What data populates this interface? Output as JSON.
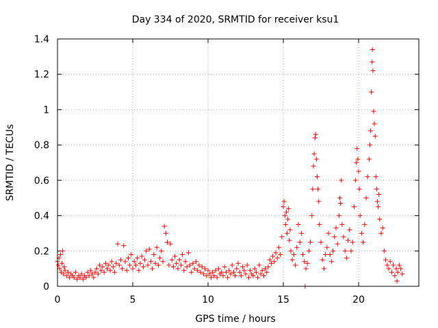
{
  "chart_data": {
    "type": "scatter",
    "title": "Day 334 of 2020, SRMTID for receiver ksu1",
    "xlabel": "GPS time / hours",
    "ylabel": "SRMTID / TECUs",
    "xlim": [
      0,
      24
    ],
    "ylim": [
      0,
      1.4
    ],
    "grid": true,
    "marker": "+",
    "color": "#ff0000",
    "x_ticks": [
      0,
      5,
      10,
      15,
      20
    ],
    "x_tick_labels": [
      "0",
      "5",
      "10",
      "15",
      "20"
    ],
    "y_ticks": [
      0,
      0.2,
      0.4,
      0.6,
      0.8,
      1.0,
      1.2,
      1.4
    ],
    "y_tick_labels": [
      "0",
      "0.2",
      "0.4",
      "0.6",
      "0.8",
      "1",
      "1.2",
      "1.4"
    ],
    "series": [
      {
        "name": "SRMTID",
        "points": [
          [
            0.0,
            0.14
          ],
          [
            0.05,
            0.12
          ],
          [
            0.1,
            0.16
          ],
          [
            0.15,
            0.1
          ],
          [
            0.2,
            0.18
          ],
          [
            0.25,
            0.08
          ],
          [
            0.3,
            0.13
          ],
          [
            0.35,
            0.2
          ],
          [
            0.4,
            0.07
          ],
          [
            0.45,
            0.11
          ],
          [
            0.5,
            0.09
          ],
          [
            0.6,
            0.06
          ],
          [
            0.7,
            0.08
          ],
          [
            0.8,
            0.05
          ],
          [
            0.9,
            0.07
          ],
          [
            1.0,
            0.06
          ],
          [
            1.1,
            0.05
          ],
          [
            1.2,
            0.08
          ],
          [
            1.3,
            0.04
          ],
          [
            1.4,
            0.06
          ],
          [
            1.5,
            0.05
          ],
          [
            1.6,
            0.07
          ],
          [
            1.7,
            0.04
          ],
          [
            1.8,
            0.06
          ],
          [
            1.9,
            0.05
          ],
          [
            2.0,
            0.08
          ],
          [
            2.1,
            0.06
          ],
          [
            2.2,
            0.09
          ],
          [
            2.3,
            0.07
          ],
          [
            2.4,
            0.05
          ],
          [
            2.5,
            0.08
          ],
          [
            2.6,
            0.1
          ],
          [
            2.7,
            0.07
          ],
          [
            2.8,
            0.12
          ],
          [
            2.9,
            0.09
          ],
          [
            3.0,
            0.11
          ],
          [
            3.1,
            0.08
          ],
          [
            3.2,
            0.13
          ],
          [
            3.3,
            0.1
          ],
          [
            3.4,
            0.12
          ],
          [
            3.5,
            0.09
          ],
          [
            3.6,
            0.14
          ],
          [
            3.7,
            0.11
          ],
          [
            3.8,
            0.08
          ],
          [
            3.9,
            0.13
          ],
          [
            4.0,
            0.24
          ],
          [
            4.1,
            0.12
          ],
          [
            4.2,
            0.15
          ],
          [
            4.3,
            0.1
          ],
          [
            4.4,
            0.23
          ],
          [
            4.5,
            0.14
          ],
          [
            4.6,
            0.09
          ],
          [
            4.7,
            0.16
          ],
          [
            4.8,
            0.12
          ],
          [
            4.9,
            0.18
          ],
          [
            5.0,
            0.1
          ],
          [
            5.1,
            0.14
          ],
          [
            5.2,
            0.12
          ],
          [
            5.3,
            0.16
          ],
          [
            5.4,
            0.09
          ],
          [
            5.5,
            0.13
          ],
          [
            5.6,
            0.17
          ],
          [
            5.7,
            0.11
          ],
          [
            5.8,
            0.15
          ],
          [
            5.9,
            0.2
          ],
          [
            6.0,
            0.12
          ],
          [
            6.1,
            0.21
          ],
          [
            6.2,
            0.14
          ],
          [
            6.3,
            0.1
          ],
          [
            6.4,
            0.18
          ],
          [
            6.5,
            0.13
          ],
          [
            6.6,
            0.22
          ],
          [
            6.7,
            0.12
          ],
          [
            6.8,
            0.16
          ],
          [
            6.9,
            0.2
          ],
          [
            7.0,
            0.14
          ],
          [
            7.1,
            0.34
          ],
          [
            7.2,
            0.3
          ],
          [
            7.3,
            0.25
          ],
          [
            7.4,
            0.12
          ],
          [
            7.5,
            0.24
          ],
          [
            7.6,
            0.15
          ],
          [
            7.7,
            0.11
          ],
          [
            7.8,
            0.17
          ],
          [
            7.9,
            0.13
          ],
          [
            8.0,
            0.1
          ],
          [
            8.1,
            0.15
          ],
          [
            8.2,
            0.12
          ],
          [
            8.3,
            0.18
          ],
          [
            8.4,
            0.09
          ],
          [
            8.5,
            0.14
          ],
          [
            8.6,
            0.11
          ],
          [
            8.7,
            0.19
          ],
          [
            8.8,
            0.12
          ],
          [
            8.9,
            0.08
          ],
          [
            9.0,
            0.13
          ],
          [
            9.1,
            0.1
          ],
          [
            9.2,
            0.14
          ],
          [
            9.3,
            0.09
          ],
          [
            9.4,
            0.12
          ],
          [
            9.5,
            0.08
          ],
          [
            9.6,
            0.11
          ],
          [
            9.7,
            0.07
          ],
          [
            9.8,
            0.1
          ],
          [
            9.9,
            0.06
          ],
          [
            10.0,
            0.09
          ],
          [
            10.1,
            0.07
          ],
          [
            10.2,
            0.05
          ],
          [
            10.3,
            0.08
          ],
          [
            10.4,
            0.06
          ],
          [
            10.5,
            0.09
          ],
          [
            10.6,
            0.05
          ],
          [
            10.7,
            0.1
          ],
          [
            10.8,
            0.07
          ],
          [
            10.9,
            0.08
          ],
          [
            11.0,
            0.06
          ],
          [
            11.1,
            0.11
          ],
          [
            11.2,
            0.08
          ],
          [
            11.3,
            0.05
          ],
          [
            11.4,
            0.09
          ],
          [
            11.5,
            0.07
          ],
          [
            11.6,
            0.12
          ],
          [
            11.7,
            0.08
          ],
          [
            11.8,
            0.06
          ],
          [
            11.9,
            0.1
          ],
          [
            12.0,
            0.13
          ],
          [
            12.1,
            0.08
          ],
          [
            12.2,
            0.06
          ],
          [
            12.3,
            0.11
          ],
          [
            12.4,
            0.09
          ],
          [
            12.5,
            0.07
          ],
          [
            12.6,
            0.12
          ],
          [
            12.7,
            0.05
          ],
          [
            12.8,
            0.09
          ],
          [
            12.9,
            0.07
          ],
          [
            13.0,
            0.06
          ],
          [
            13.1,
            0.1
          ],
          [
            13.2,
            0.08
          ],
          [
            13.3,
            0.05
          ],
          [
            13.4,
            0.12
          ],
          [
            13.5,
            0.07
          ],
          [
            13.6,
            0.09
          ],
          [
            13.7,
            0.06
          ],
          [
            13.8,
            0.1
          ],
          [
            13.9,
            0.08
          ],
          [
            14.0,
            0.11
          ],
          [
            14.1,
            0.15
          ],
          [
            14.2,
            0.13
          ],
          [
            14.3,
            0.17
          ],
          [
            14.4,
            0.14
          ],
          [
            14.5,
            0.19
          ],
          [
            14.6,
            0.16
          ],
          [
            14.7,
            0.22
          ],
          [
            14.8,
            0.18
          ],
          [
            14.9,
            0.28
          ],
          [
            15.0,
            0.45
          ],
          [
            15.05,
            0.48
          ],
          [
            15.1,
            0.4
          ],
          [
            15.15,
            0.35
          ],
          [
            15.2,
            0.42
          ],
          [
            15.25,
            0.3
          ],
          [
            15.3,
            0.38
          ],
          [
            15.35,
            0.44
          ],
          [
            15.4,
            0.26
          ],
          [
            15.45,
            0.32
          ],
          [
            15.5,
            0.2
          ],
          [
            15.6,
            0.15
          ],
          [
            15.7,
            0.18
          ],
          [
            15.8,
            0.12
          ],
          [
            15.9,
            0.22
          ],
          [
            16.0,
            0.35
          ],
          [
            16.1,
            0.25
          ],
          [
            16.2,
            0.3
          ],
          [
            16.3,
            0.18
          ],
          [
            16.4,
            0.14
          ],
          [
            16.45,
            0.0
          ],
          [
            16.5,
            0.1
          ],
          [
            16.6,
            0.13
          ],
          [
            16.7,
            0.2
          ],
          [
            16.8,
            0.25
          ],
          [
            16.9,
            0.4
          ],
          [
            16.95,
            0.55
          ],
          [
            17.0,
            0.68
          ],
          [
            17.05,
            0.75
          ],
          [
            17.1,
            0.84
          ],
          [
            17.15,
            0.86
          ],
          [
            17.2,
            0.72
          ],
          [
            17.25,
            0.62
          ],
          [
            17.3,
            0.55
          ],
          [
            17.35,
            0.48
          ],
          [
            17.4,
            0.35
          ],
          [
            17.5,
            0.25
          ],
          [
            17.6,
            0.15
          ],
          [
            17.7,
            0.1
          ],
          [
            17.8,
            0.18
          ],
          [
            17.9,
            0.22
          ],
          [
            18.0,
            0.3
          ],
          [
            18.1,
            0.18
          ],
          [
            18.2,
            0.14
          ],
          [
            18.3,
            0.2
          ],
          [
            18.4,
            0.28
          ],
          [
            18.5,
            0.33
          ],
          [
            18.6,
            0.24
          ],
          [
            18.7,
            0.4
          ],
          [
            18.75,
            0.5
          ],
          [
            18.8,
            0.47
          ],
          [
            18.85,
            0.6
          ],
          [
            18.9,
            0.35
          ],
          [
            19.0,
            0.28
          ],
          [
            19.1,
            0.2
          ],
          [
            19.2,
            0.16
          ],
          [
            19.3,
            0.26
          ],
          [
            19.4,
            0.32
          ],
          [
            19.5,
            0.2
          ],
          [
            19.6,
            0.25
          ],
          [
            19.7,
            0.45
          ],
          [
            19.8,
            0.6
          ],
          [
            19.85,
            0.7
          ],
          [
            19.9,
            0.78
          ],
          [
            19.95,
            0.72
          ],
          [
            20.0,
            0.65
          ],
          [
            20.05,
            0.55
          ],
          [
            20.1,
            0.4
          ],
          [
            20.2,
            0.3
          ],
          [
            20.3,
            0.25
          ],
          [
            20.4,
            0.35
          ],
          [
            20.5,
            0.5
          ],
          [
            20.6,
            0.62
          ],
          [
            20.7,
            0.72
          ],
          [
            20.75,
            0.8
          ],
          [
            20.8,
            0.88
          ],
          [
            20.85,
            1.1
          ],
          [
            20.9,
            1.27
          ],
          [
            20.92,
            1.34
          ],
          [
            20.95,
            1.22
          ],
          [
            21.0,
            0.99
          ],
          [
            21.05,
            0.92
          ],
          [
            21.1,
            0.85
          ],
          [
            21.15,
            0.62
          ],
          [
            21.2,
            0.55
          ],
          [
            21.25,
            0.48
          ],
          [
            21.3,
            0.45
          ],
          [
            21.35,
            0.52
          ],
          [
            21.4,
            0.38
          ],
          [
            21.5,
            0.3
          ],
          [
            21.6,
            0.33
          ],
          [
            21.7,
            0.2
          ],
          [
            21.8,
            0.15
          ],
          [
            21.9,
            0.12
          ],
          [
            22.0,
            0.1
          ],
          [
            22.1,
            0.14
          ],
          [
            22.2,
            0.08
          ],
          [
            22.3,
            0.12
          ],
          [
            22.4,
            0.06
          ],
          [
            22.5,
            0.1
          ],
          [
            22.55,
            0.03
          ],
          [
            22.6,
            0.08
          ],
          [
            22.7,
            0.12
          ],
          [
            22.8,
            0.1
          ],
          [
            22.9,
            0.07
          ]
        ]
      }
    ]
  }
}
